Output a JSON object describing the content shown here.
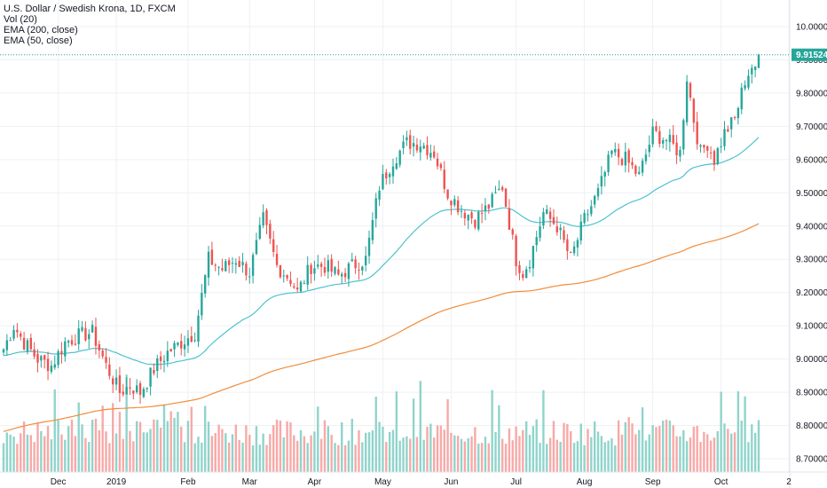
{
  "legend": {
    "title": "U.S. Dollar / Swedish Krona, 1D, FXCM",
    "vol": "Vol (20)",
    "ema200": "EMA (200, close)",
    "ema50": "EMA (50, close)"
  },
  "colors": {
    "up": "#26a69a",
    "down": "#ef5350",
    "vol_up": "#8fd4cb",
    "vol_down": "#f7a9a7",
    "ema50": "#4dc3cf",
    "ema200": "#f28c3a",
    "grid": "#eef0f3",
    "price_line": "#26a69a"
  },
  "chart_data": {
    "type": "candlestick",
    "title": "U.S. Dollar / Swedish Krona, 1D, FXCM",
    "xlabel": "",
    "ylabel": "",
    "ylim": [
      8.66,
      10.08
    ],
    "grid": true,
    "y_ticks": [
      "10.00000",
      "9.90000",
      "9.80000",
      "9.70000",
      "9.60000",
      "9.50000",
      "9.40000",
      "9.30000",
      "9.20000",
      "9.10000",
      "9.00000",
      "8.90000",
      "8.80000",
      "8.70000"
    ],
    "x_ticks": [
      "Dec",
      "2019",
      "Feb",
      "Mar",
      "Apr",
      "May",
      "Jun",
      "Jul",
      "Aug",
      "Sep",
      "Oct",
      "2"
    ],
    "last_price": "9.91524",
    "close_anchors": [
      [
        0,
        9.03
      ],
      [
        3,
        9.1
      ],
      [
        6,
        9.05
      ],
      [
        10,
        9.0
      ],
      [
        14,
        8.98
      ],
      [
        18,
        9.05
      ],
      [
        22,
        9.07
      ],
      [
        26,
        9.08
      ],
      [
        30,
        8.98
      ],
      [
        34,
        8.9
      ],
      [
        37,
        8.92
      ],
      [
        40,
        8.9
      ],
      [
        44,
        8.97
      ],
      [
        48,
        9.02
      ],
      [
        52,
        9.05
      ],
      [
        56,
        9.08
      ],
      [
        60,
        9.3
      ],
      [
        64,
        9.27
      ],
      [
        68,
        9.3
      ],
      [
        72,
        9.26
      ],
      [
        76,
        9.42
      ],
      [
        80,
        9.28
      ],
      [
        84,
        9.24
      ],
      [
        86,
        9.2
      ],
      [
        90,
        9.28
      ],
      [
        94,
        9.28
      ],
      [
        98,
        9.25
      ],
      [
        102,
        9.28
      ],
      [
        106,
        9.3
      ],
      [
        110,
        9.52
      ],
      [
        114,
        9.6
      ],
      [
        118,
        9.65
      ],
      [
        122,
        9.65
      ],
      [
        126,
        9.62
      ],
      [
        130,
        9.5
      ],
      [
        134,
        9.45
      ],
      [
        138,
        9.42
      ],
      [
        142,
        9.46
      ],
      [
        146,
        9.52
      ],
      [
        150,
        9.3
      ],
      [
        152,
        9.26
      ],
      [
        154,
        9.3
      ],
      [
        158,
        9.44
      ],
      [
        162,
        9.4
      ],
      [
        166,
        9.3
      ],
      [
        170,
        9.42
      ],
      [
        174,
        9.5
      ],
      [
        178,
        9.62
      ],
      [
        182,
        9.6
      ],
      [
        186,
        9.55
      ],
      [
        190,
        9.68
      ],
      [
        194,
        9.66
      ],
      [
        198,
        9.62
      ],
      [
        200,
        9.85
      ],
      [
        202,
        9.72
      ],
      [
        204,
        9.62
      ],
      [
        206,
        9.65
      ],
      [
        208,
        9.6
      ],
      [
        211,
        9.68
      ],
      [
        214,
        9.72
      ],
      [
        217,
        9.84
      ],
      [
        219,
        9.88
      ],
      [
        221,
        9.84
      ]
    ]
  }
}
